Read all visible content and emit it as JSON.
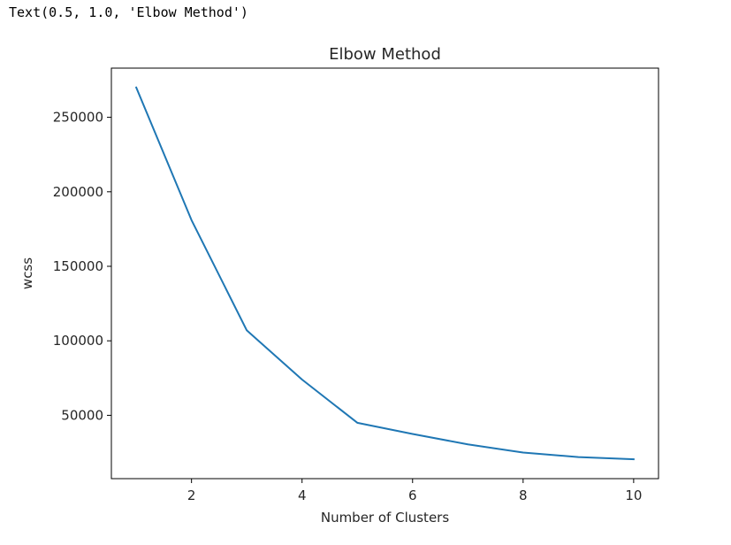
{
  "cell_output": {
    "text": "Text(0.5, 1.0, 'Elbow Method')"
  },
  "chart_data": {
    "type": "line",
    "title": "Elbow Method",
    "xlabel": "Number of Clusters",
    "ylabel": "wcss",
    "x": [
      1,
      2,
      3,
      4,
      5,
      6,
      7,
      8,
      9,
      10
    ],
    "series": [
      {
        "values": [
          270000,
          181000,
          107000,
          74000,
          45000,
          37500,
          30500,
          25000,
          22000,
          20500
        ],
        "color": "#1f77b4"
      }
    ],
    "xlim": [
      0.55,
      10.45
    ],
    "ylim": [
      7500,
      283000
    ],
    "xticks": [
      2,
      4,
      6,
      8,
      10
    ],
    "yticks": [
      50000,
      100000,
      150000,
      200000,
      250000
    ],
    "grid": false,
    "legend": "none"
  }
}
